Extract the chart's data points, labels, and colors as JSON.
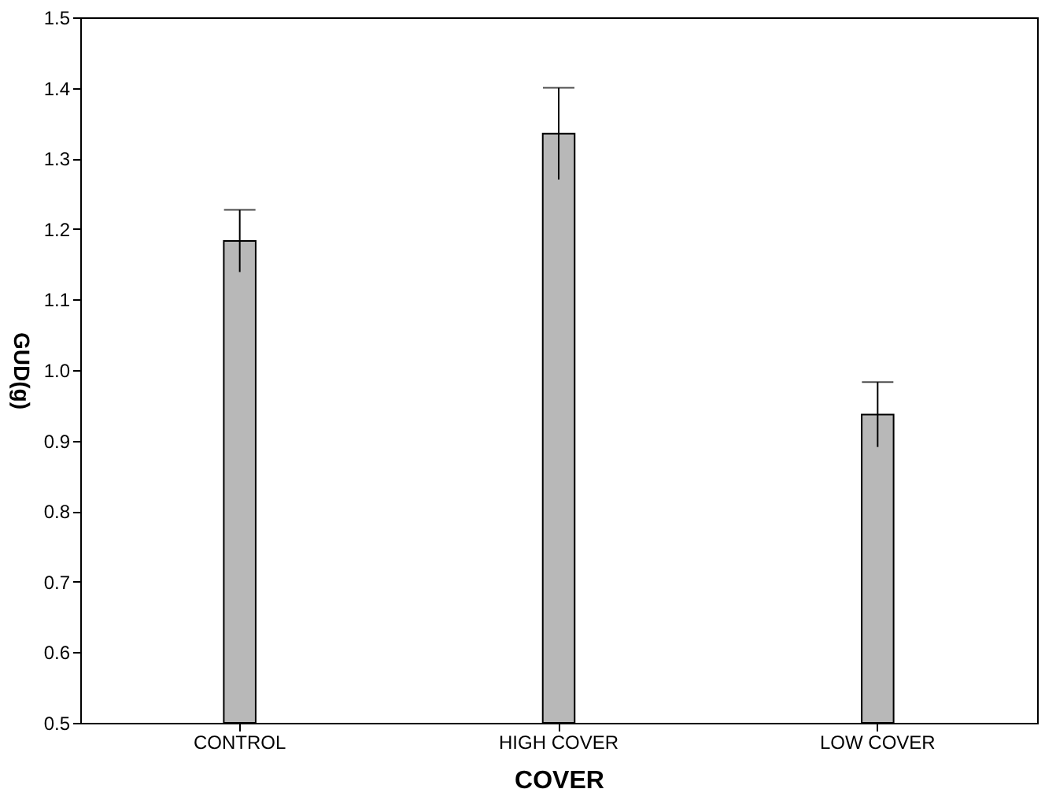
{
  "chart_data": {
    "type": "bar",
    "xlabel": "COVER",
    "ylabel": "GUD(g)",
    "categories": [
      "CONTROL",
      "HIGH COVER",
      "LOW COVER"
    ],
    "values": [
      1.183,
      1.335,
      0.937
    ],
    "errors": [
      0.044,
      0.065,
      0.046
    ],
    "color": "#b8b8b8",
    "ylim": [
      0.5,
      1.5
    ],
    "yticks": [
      0.5,
      0.6,
      0.7,
      0.8,
      0.9,
      {
        "value": 1.0,
        "label": "1.0"
      },
      1.1,
      1.2,
      1.3,
      1.4,
      1.5
    ],
    "grid": false
  }
}
